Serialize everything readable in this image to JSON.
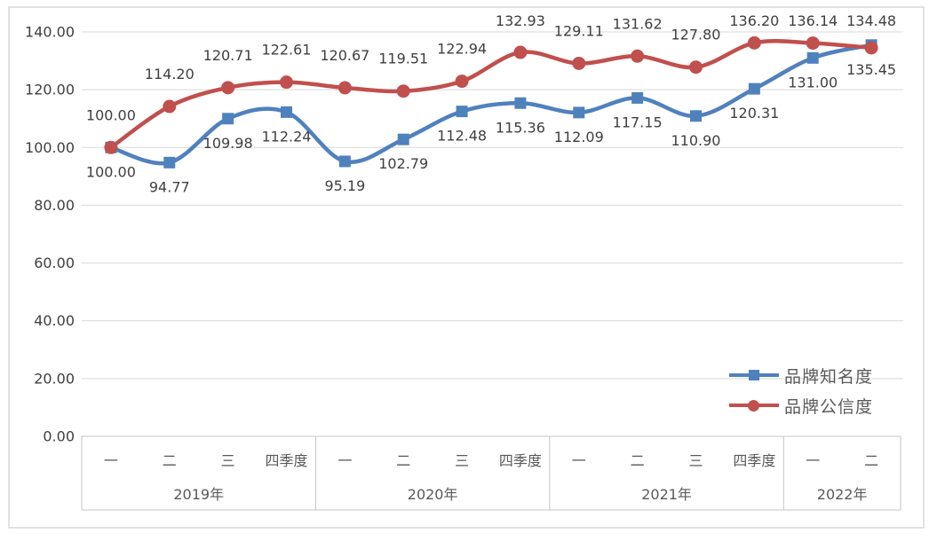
{
  "chart_data": {
    "type": "line",
    "smooth": true,
    "grid": true,
    "categories_quarters": [
      "一",
      "二",
      "三",
      "四季度",
      "一",
      "二",
      "三",
      "四季度",
      "一",
      "二",
      "三",
      "四季度",
      "一",
      "二"
    ],
    "year_groups": [
      {
        "label": "2019年",
        "span": 4
      },
      {
        "label": "2020年",
        "span": 4
      },
      {
        "label": "2021年",
        "span": 4
      },
      {
        "label": "2022年",
        "span": 2
      }
    ],
    "series": [
      {
        "name": "品牌知名度",
        "color": "#4F81BD",
        "marker": "square",
        "values": [
          100.0,
          94.77,
          109.98,
          112.24,
          95.19,
          102.79,
          112.48,
          115.36,
          112.09,
          117.15,
          110.9,
          120.31,
          131.0,
          135.45
        ]
      },
      {
        "name": "品牌公信度",
        "color": "#C0504D",
        "marker": "circle",
        "values": [
          100.0,
          114.2,
          120.71,
          122.61,
          120.67,
          119.51,
          122.94,
          132.93,
          129.11,
          131.62,
          127.8,
          136.2,
          136.14,
          134.48
        ]
      }
    ],
    "y_axis": {
      "min": 0,
      "max": 140,
      "tick_step": 20,
      "tick_labels": [
        "0.00",
        "20.00",
        "40.00",
        "60.00",
        "80.00",
        "100.00",
        "120.00",
        "140.00"
      ]
    },
    "data_label_decimals": 2,
    "legend_position": "right-middle-inside",
    "colors": {
      "gridline": "#D9D9D9",
      "axis_table_border": "#C6C6C6",
      "outer_border": "#D9D9D9",
      "data_label_text": "#3F3F3F",
      "axis_tick_text": "#3F3F3F",
      "category_text": "#595959"
    }
  }
}
